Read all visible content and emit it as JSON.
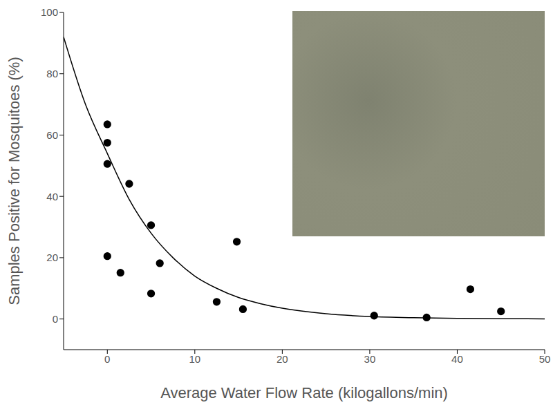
{
  "chart_data": {
    "type": "scatter",
    "x_label": "Average Water Flow Rate (kilogallons/min)",
    "y_label": "Samples Positive for Mosquitoes (%)",
    "xlim": [
      -5,
      50
    ],
    "xticks": [
      0,
      10,
      20,
      30,
      40,
      50
    ],
    "ylim": [
      -10,
      100
    ],
    "yticks": [
      0,
      20,
      40,
      60,
      80,
      100
    ],
    "grid": false,
    "series": [
      {
        "type": "scatter",
        "color": "#000000",
        "marker": "circle",
        "x": [
          0,
          0,
          0,
          0,
          1.5,
          2.5,
          5,
          5,
          6,
          12.5,
          14.8,
          15.5,
          30.5,
          36.5,
          41.5,
          45
        ],
        "values": [
          63.5,
          57.5,
          50.6,
          20.5,
          15.1,
          44.1,
          30.6,
          8.3,
          18.2,
          5.6,
          25.2,
          3.2,
          1.1,
          0.5,
          9.7,
          2.5
        ]
      },
      {
        "type": "line",
        "color": "#000000",
        "line_style": "solid",
        "x": [
          -5,
          -2.5,
          0,
          2.5,
          5,
          7.5,
          10,
          12.5,
          15,
          17.5,
          20,
          25,
          30,
          35,
          40,
          45,
          50
        ],
        "values": [
          92,
          70,
          54,
          39,
          28,
          20,
          14,
          10,
          7,
          5,
          3.5,
          1.7,
          0.8,
          0.4,
          0.2,
          0.1,
          0.05
        ]
      }
    ]
  }
}
